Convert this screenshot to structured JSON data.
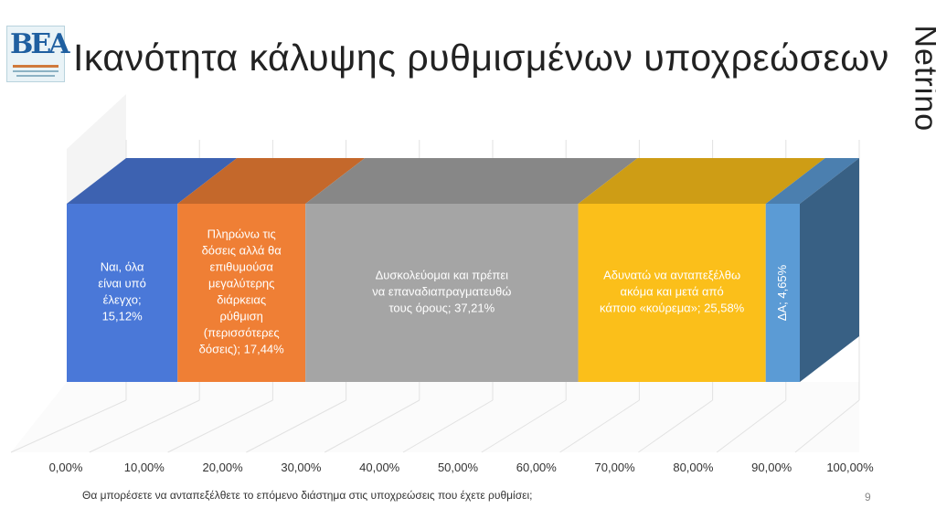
{
  "slide": {
    "title": "Ικανότητα κάλυψης ρυθμισμένων υποχρεώσεων",
    "brand": "Netrino",
    "logo_icon": "bea-logo-icon",
    "footnote": "Θα μπορέσετε να ανταπεξέλθετε το επόμενο διάστημα στις υποχρεώσεις που έχετε ρυθμίσει;",
    "page_number": "9"
  },
  "chart_data": {
    "type": "bar",
    "orientation": "horizontal-stacked-100",
    "xlim": [
      0,
      100
    ],
    "x_ticks": [
      "0,00%",
      "10,00%",
      "20,00%",
      "30,00%",
      "40,00%",
      "50,00%",
      "60,00%",
      "70,00%",
      "80,00%",
      "90,00%",
      "100,00%"
    ],
    "grid": true,
    "series": [
      {
        "value": 15.12,
        "color": "#4a78d8",
        "label_lines": [
          "Ναι, όλα",
          "είναι υπό",
          "έλεγχο;",
          "15,12%"
        ]
      },
      {
        "value": 17.44,
        "color": "#ef7f35",
        "label_lines": [
          "Πληρώνω τις",
          "δόσεις αλλά θα",
          "επιθυμούσα",
          "μεγαλύτερης",
          "διάρκειας",
          "ρύθμιση",
          "(περισσότερες",
          "δόσεις); 17,44%"
        ]
      },
      {
        "value": 37.21,
        "color": "#a5a5a5",
        "label_lines": [
          "Δυσκολεύομαι και πρέπει",
          "να επαναδιαπραγματευθώ",
          "τους όρους; 37,21%"
        ]
      },
      {
        "value": 25.58,
        "color": "#fbbf1a",
        "label_lines": [
          "Αδυνατώ να ανταπεξέλθω",
          "ακόμα και μετά από",
          "κάποιο «κούρεμα»; 25,58%"
        ]
      },
      {
        "value": 4.65,
        "color": "#5b9bd5",
        "label_lines": [
          "ΔΑ; 4,65%"
        ]
      }
    ]
  }
}
